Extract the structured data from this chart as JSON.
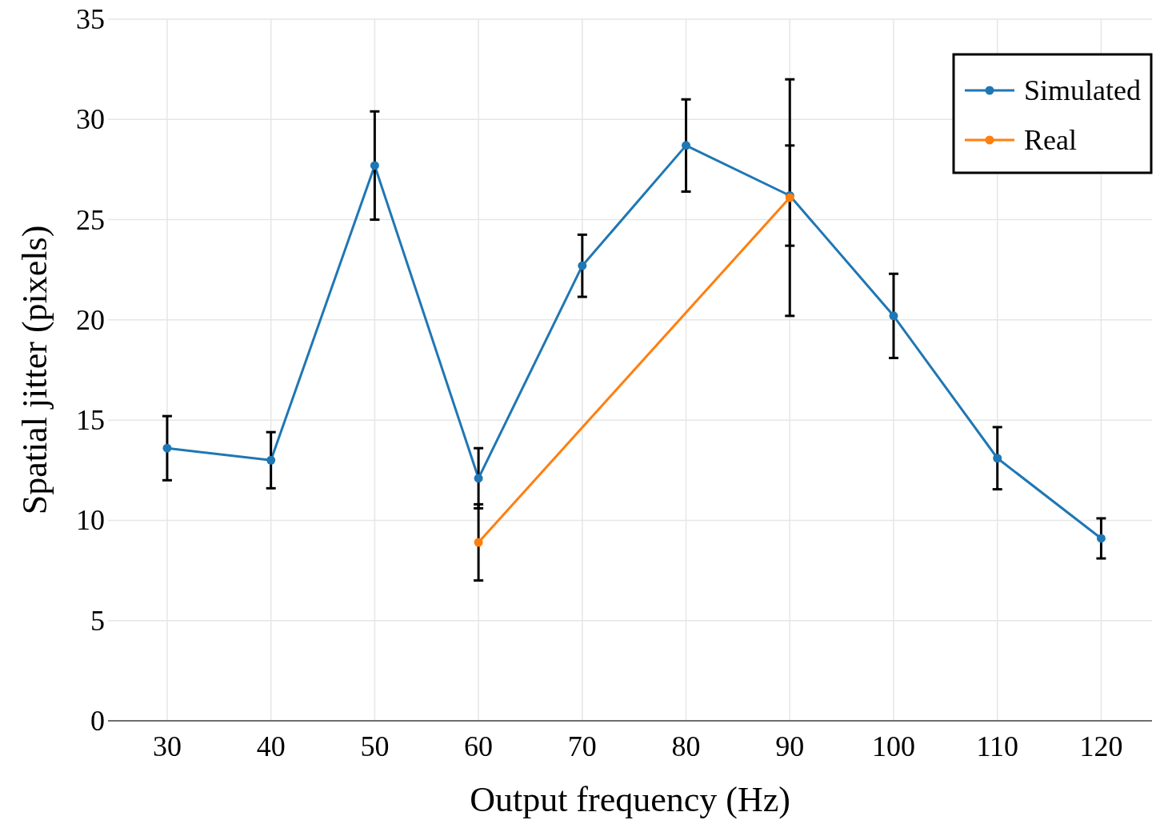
{
  "chart_data": {
    "type": "line",
    "xlabel": "Output frequency (Hz)",
    "ylabel": "Spatial jitter (pixels)",
    "x": [
      30,
      40,
      50,
      60,
      70,
      80,
      90,
      100,
      110,
      120
    ],
    "series": [
      {
        "name": "Simulated",
        "color": "#1f77b4",
        "values": [
          13.6,
          13.0,
          27.7,
          12.1,
          22.7,
          28.7,
          26.2,
          20.2,
          13.1,
          9.1
        ],
        "errors": [
          1.6,
          1.4,
          2.7,
          1.5,
          1.55,
          2.3,
          2.5,
          2.1,
          1.55,
          1.0
        ]
      },
      {
        "name": "Real",
        "color": "#ff7f0e",
        "x": [
          60,
          90
        ],
        "values": [
          8.9,
          26.1
        ],
        "errors": [
          1.9,
          5.9
        ]
      }
    ],
    "xlim": [
      24.3,
      124.9
    ],
    "xticks": [
      30,
      40,
      50,
      60,
      70,
      80,
      90,
      100,
      110,
      120
    ],
    "ylim": [
      0,
      35
    ],
    "yticks": [
      0,
      5,
      10,
      15,
      20,
      25,
      30,
      35
    ],
    "grid": true,
    "legend": "top right",
    "marker": "circle",
    "line_style": "solid"
  }
}
